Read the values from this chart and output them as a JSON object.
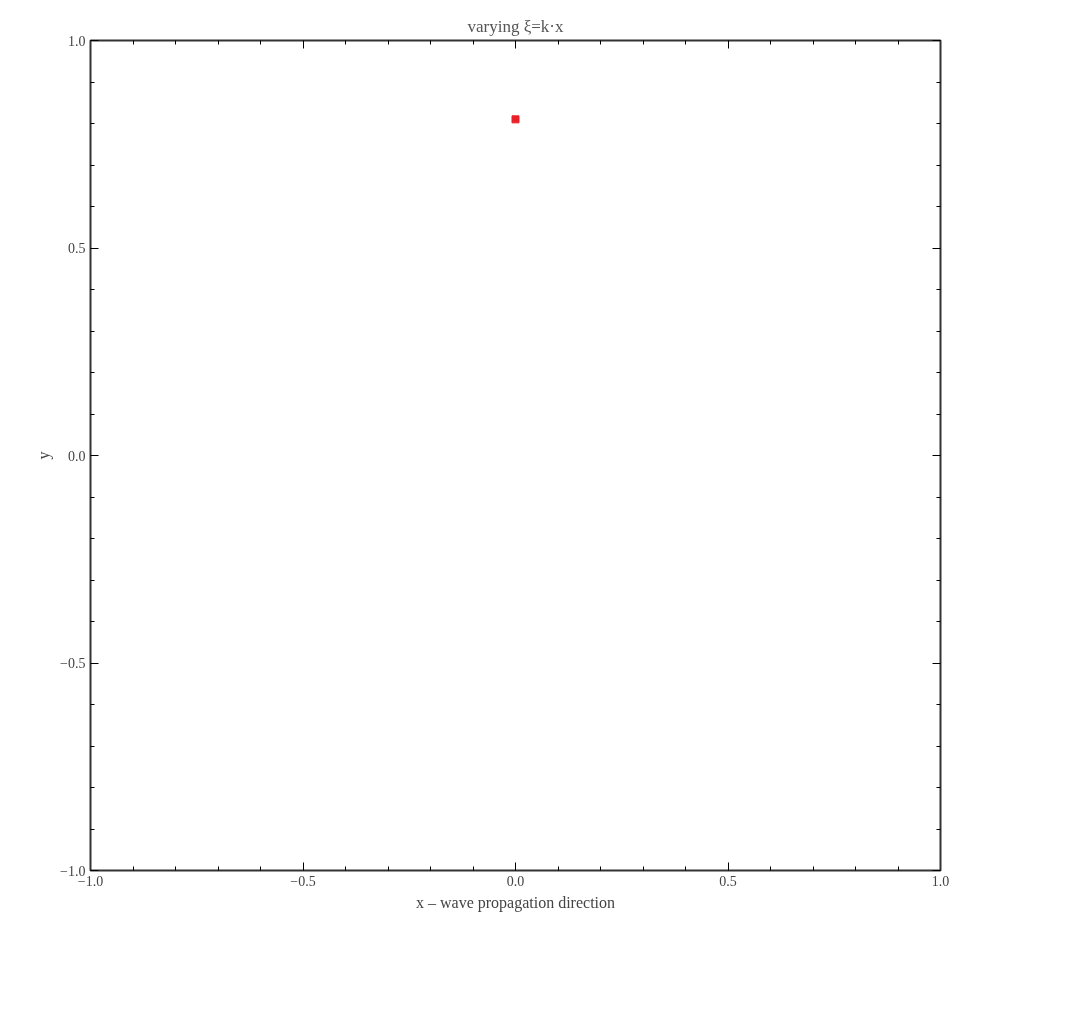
{
  "chart_data": {
    "type": "scatter",
    "title": "varying ξ=k·x",
    "xlabel": "x – wave propagation direction",
    "ylabel": "y",
    "x": [
      0.0
    ],
    "series": [
      {
        "color": "#e8202a",
        "values": [
          0.81
        ]
      }
    ],
    "xlim": [
      -1.0,
      1.0
    ],
    "ylim": [
      -1.0,
      1.0
    ],
    "xticks": [
      {
        "value": -1.0,
        "label": "−1.0"
      },
      {
        "value": -0.5,
        "label": "−0.5"
      },
      {
        "value": 0.0,
        "label": "0.0"
      },
      {
        "value": 0.5,
        "label": "0.5"
      },
      {
        "value": 1.0,
        "label": "1.0"
      }
    ],
    "yticks": [
      {
        "value": -1.0,
        "label": "−1.0"
      },
      {
        "value": -0.5,
        "label": "−0.5"
      },
      {
        "value": 0.0,
        "label": "0.0"
      },
      {
        "value": 0.5,
        "label": "0.5"
      },
      {
        "value": 1.0,
        "label": "1.0"
      }
    ],
    "grid": false,
    "marker": "square"
  }
}
